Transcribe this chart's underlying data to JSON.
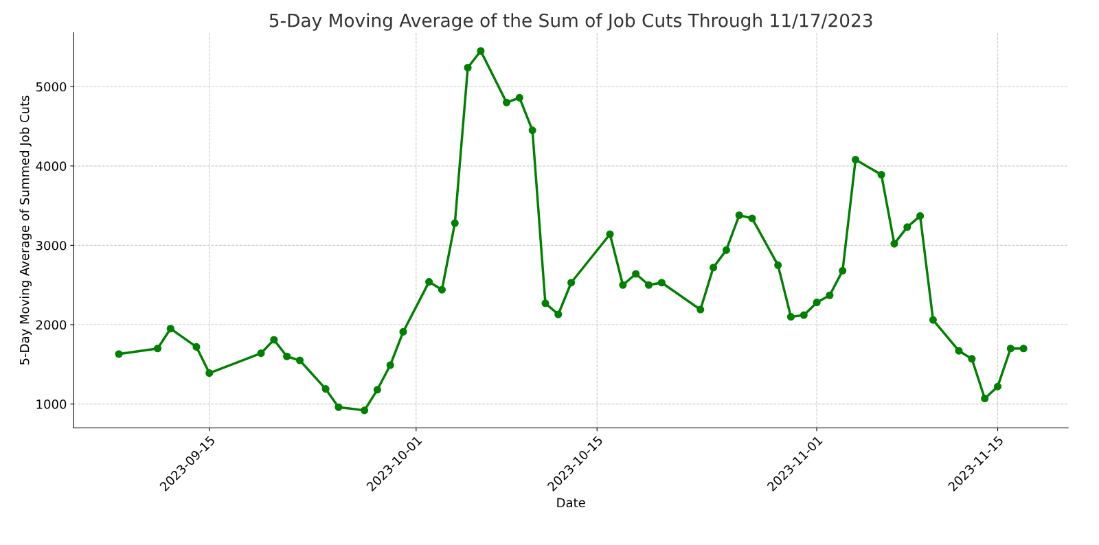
{
  "chart_data": {
    "type": "line",
    "title": "5-Day Moving Average of the Sum of Job Cuts Through 11/17/2023",
    "xlabel": "Date",
    "ylabel": "5-Day Moving Average of Summed Job Cuts",
    "x": [
      "2023-09-08",
      "2023-09-11",
      "2023-09-12",
      "2023-09-14",
      "2023-09-15",
      "2023-09-19",
      "2023-09-20",
      "2023-09-21",
      "2023-09-22",
      "2023-09-24",
      "2023-09-25",
      "2023-09-27",
      "2023-09-28",
      "2023-09-29",
      "2023-09-30",
      "2023-10-02",
      "2023-10-03",
      "2023-10-04",
      "2023-10-05",
      "2023-10-06",
      "2023-10-08",
      "2023-10-09",
      "2023-10-10",
      "2023-10-11",
      "2023-10-12",
      "2023-10-13",
      "2023-10-16",
      "2023-10-17",
      "2023-10-18",
      "2023-10-19",
      "2023-10-20",
      "2023-10-23",
      "2023-10-24",
      "2023-10-25",
      "2023-10-26",
      "2023-10-27",
      "2023-10-29",
      "2023-10-30",
      "2023-10-31",
      "2023-11-01",
      "2023-11-02",
      "2023-11-03",
      "2023-11-04",
      "2023-11-06",
      "2023-11-07",
      "2023-11-08",
      "2023-11-09",
      "2023-11-10",
      "2023-11-12",
      "2023-11-13",
      "2023-11-14",
      "2023-11-15",
      "2023-11-16",
      "2023-11-17"
    ],
    "series": [
      {
        "color": "#008000",
        "values": [
          1630,
          1700,
          1950,
          1720,
          1390,
          1640,
          1810,
          1600,
          1550,
          1190,
          960,
          920,
          1180,
          1490,
          1910,
          2540,
          2440,
          3280,
          5240,
          5450,
          4800,
          4860,
          4450,
          2270,
          2130,
          2530,
          3140,
          2500,
          2640,
          2500,
          2530,
          2190,
          2720,
          2940,
          3380,
          3340,
          2750,
          2100,
          2120,
          2280,
          2370,
          2680,
          4080,
          3890,
          3020,
          3230,
          3370,
          2060,
          1670,
          1570,
          1070,
          1220,
          1700,
          1700
        ]
      }
    ],
    "xlim": [
      "2023-09-04T12:00",
      "2023-11-20T11:00"
    ],
    "xticks": [
      "2023-09-15",
      "2023-10-01",
      "2023-10-15",
      "2023-11-01",
      "2023-11-15"
    ],
    "ylim": [
      700,
      5680
    ],
    "yticks": [
      1000,
      2000,
      3000,
      4000,
      5000
    ],
    "grid": true,
    "marker": "circle",
    "line_style": "solid"
  }
}
